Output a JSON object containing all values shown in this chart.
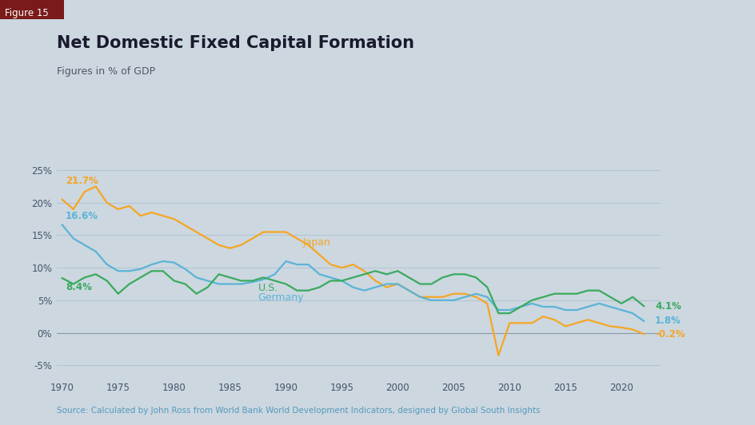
{
  "title": "Net Domestic Fixed Capital Formation",
  "subtitle": "Figures in % of GDP",
  "figure_label": "Figure 15",
  "source": "Source: Calculated by John Ross from World Bank World Development Indicators, designed by Global South Insights",
  "background_color": "#ccd7e0",
  "title_color": "#1a1a2e",
  "source_color": "#5599bb",
  "figure_label_bg": "#7a1a1a",
  "figure_label_color": "#ffffff",
  "colors": {
    "japan": "#f5a623",
    "germany": "#5ab4d6",
    "us": "#3aaa5e"
  },
  "ylim": [
    -7,
    27
  ],
  "yticks": [
    -5,
    0,
    5,
    10,
    15,
    20,
    25
  ],
  "xlim": [
    1969.5,
    2023.5
  ],
  "xticks": [
    1970,
    1975,
    1980,
    1985,
    1990,
    1995,
    2000,
    2005,
    2010,
    2015,
    2020
  ],
  "japan": {
    "years": [
      1970,
      1971,
      1972,
      1973,
      1974,
      1975,
      1976,
      1977,
      1978,
      1979,
      1980,
      1981,
      1982,
      1983,
      1984,
      1985,
      1986,
      1987,
      1988,
      1989,
      1990,
      1991,
      1992,
      1993,
      1994,
      1995,
      1996,
      1997,
      1998,
      1999,
      2000,
      2001,
      2002,
      2003,
      2004,
      2005,
      2006,
      2007,
      2008,
      2009,
      2010,
      2011,
      2012,
      2013,
      2014,
      2015,
      2016,
      2017,
      2018,
      2019,
      2020,
      2021,
      2022
    ],
    "values": [
      20.5,
      19.0,
      21.7,
      22.5,
      20.0,
      19.0,
      19.5,
      18.0,
      18.5,
      18.0,
      17.5,
      16.5,
      15.5,
      14.5,
      13.5,
      13.0,
      13.5,
      14.5,
      15.5,
      15.5,
      15.5,
      14.5,
      13.5,
      12.0,
      10.5,
      10.0,
      10.5,
      9.5,
      8.0,
      7.0,
      7.5,
      6.5,
      5.5,
      5.5,
      5.5,
      6.0,
      6.0,
      5.5,
      4.5,
      -3.5,
      1.5,
      1.5,
      1.5,
      2.5,
      2.0,
      1.0,
      1.5,
      2.0,
      1.5,
      1.0,
      0.8,
      0.5,
      -0.2
    ]
  },
  "germany": {
    "years": [
      1970,
      1971,
      1972,
      1973,
      1974,
      1975,
      1976,
      1977,
      1978,
      1979,
      1980,
      1981,
      1982,
      1983,
      1984,
      1985,
      1986,
      1987,
      1988,
      1989,
      1990,
      1991,
      1992,
      1993,
      1994,
      1995,
      1996,
      1997,
      1998,
      1999,
      2000,
      2001,
      2002,
      2003,
      2004,
      2005,
      2006,
      2007,
      2008,
      2009,
      2010,
      2011,
      2012,
      2013,
      2014,
      2015,
      2016,
      2017,
      2018,
      2019,
      2020,
      2021,
      2022
    ],
    "values": [
      16.6,
      14.5,
      13.5,
      12.5,
      10.5,
      9.5,
      9.5,
      9.8,
      10.5,
      11.0,
      10.8,
      9.8,
      8.5,
      8.0,
      7.5,
      7.5,
      7.5,
      7.8,
      8.2,
      9.0,
      11.0,
      10.5,
      10.5,
      9.0,
      8.5,
      8.0,
      7.0,
      6.5,
      7.0,
      7.5,
      7.5,
      6.5,
      5.5,
      5.0,
      5.0,
      5.0,
      5.5,
      6.0,
      5.5,
      3.5,
      3.5,
      4.0,
      4.5,
      4.0,
      4.0,
      3.5,
      3.5,
      4.0,
      4.5,
      4.0,
      3.5,
      3.0,
      1.8
    ]
  },
  "us": {
    "years": [
      1970,
      1971,
      1972,
      1973,
      1974,
      1975,
      1976,
      1977,
      1978,
      1979,
      1980,
      1981,
      1982,
      1983,
      1984,
      1985,
      1986,
      1987,
      1988,
      1989,
      1990,
      1991,
      1992,
      1993,
      1994,
      1995,
      1996,
      1997,
      1998,
      1999,
      2000,
      2001,
      2002,
      2003,
      2004,
      2005,
      2006,
      2007,
      2008,
      2009,
      2010,
      2011,
      2012,
      2013,
      2014,
      2015,
      2016,
      2017,
      2018,
      2019,
      2020,
      2021,
      2022
    ],
    "values": [
      8.4,
      7.5,
      8.5,
      9.0,
      8.0,
      6.0,
      7.5,
      8.5,
      9.5,
      9.5,
      8.0,
      7.5,
      6.0,
      7.0,
      9.0,
      8.5,
      8.0,
      8.0,
      8.5,
      8.0,
      7.5,
      6.5,
      6.5,
      7.0,
      8.0,
      8.0,
      8.5,
      9.0,
      9.5,
      9.0,
      9.5,
      8.5,
      7.5,
      7.5,
      8.5,
      9.0,
      9.0,
      8.5,
      7.0,
      3.0,
      3.0,
      4.0,
      5.0,
      5.5,
      6.0,
      6.0,
      6.0,
      6.5,
      6.5,
      5.5,
      4.5,
      5.5,
      4.1
    ]
  }
}
